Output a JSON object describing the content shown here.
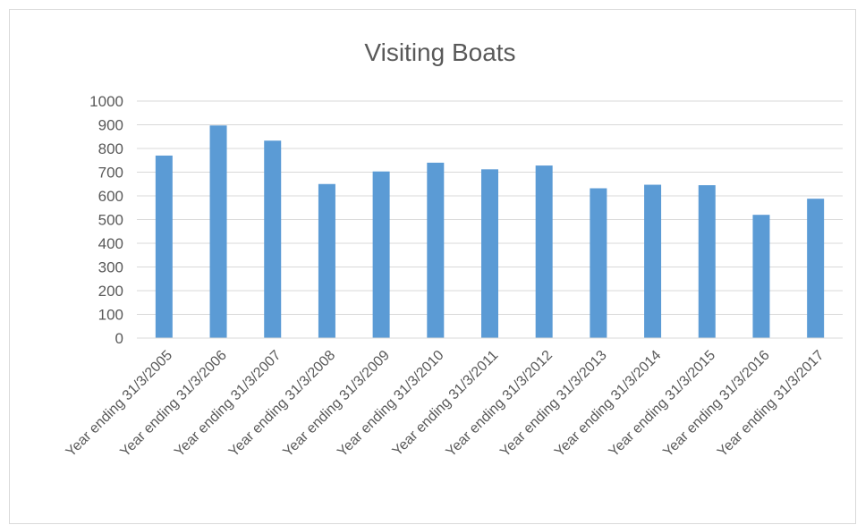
{
  "chart_data": {
    "type": "bar",
    "title": "Visiting Boats",
    "xlabel": "",
    "ylabel": "",
    "ylim": [
      0,
      1000
    ],
    "yticks": [
      0,
      100,
      200,
      300,
      400,
      500,
      600,
      700,
      800,
      900,
      1000
    ],
    "grid": true,
    "legend": "none",
    "bar_color": "#5b9bd5",
    "categories": [
      "Year ending 31/3/2005",
      "Year ending 31/3/2006",
      "Year ending 31/3/2007",
      "Year ending 31/3/2008",
      "Year ending 31/3/2009",
      "Year ending 31/3/2010",
      "Year ending 31/3/2011",
      "Year ending 31/3/2012",
      "Year ending 31/3/2013",
      "Year ending 31/3/2014",
      "Year ending 31/3/2015",
      "Year ending 31/3/2016",
      "Year ending 31/3/2017"
    ],
    "values": [
      770,
      897,
      833,
      650,
      703,
      740,
      712,
      728,
      632,
      647,
      645,
      520,
      588
    ]
  }
}
